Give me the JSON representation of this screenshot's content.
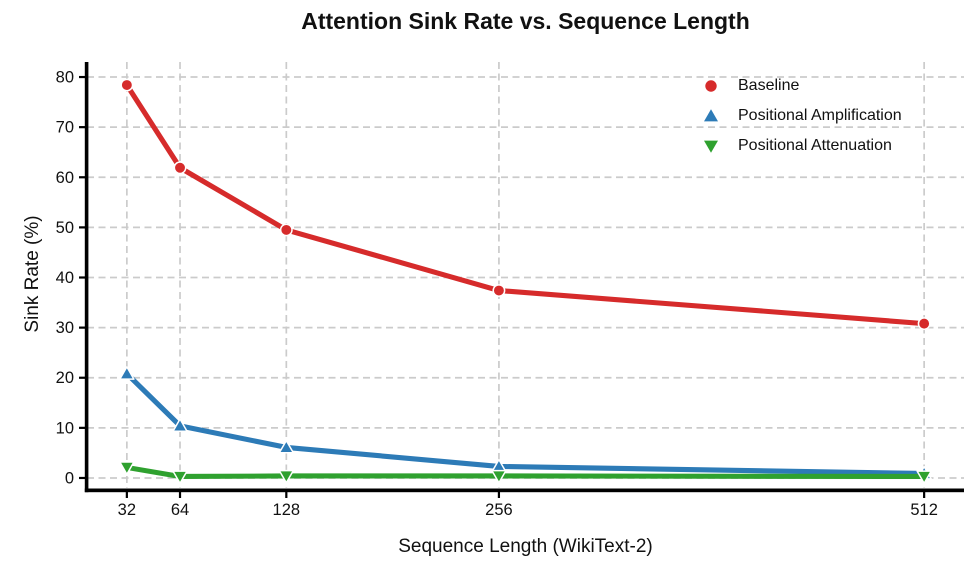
{
  "chart_data": {
    "type": "line",
    "title": "Attention Sink Rate vs. Sequence Length",
    "xlabel": "Sequence Length (WikiText-2)",
    "ylabel": "Sink Rate (%)",
    "x": [
      32,
      64,
      128,
      256,
      512
    ],
    "xticks": [
      "32",
      "64",
      "128",
      "256",
      "512"
    ],
    "yticks": [
      0,
      10,
      20,
      30,
      40,
      50,
      60,
      70,
      80
    ],
    "xlim": [
      8,
      536
    ],
    "ylim": [
      -2,
      83
    ],
    "grid": true,
    "grid_style": "dashed",
    "legend_position": "upper right",
    "series": [
      {
        "name": "Baseline",
        "color": "#d62b2b",
        "marker": "circle",
        "values": [
          78.4,
          61.9,
          49.5,
          37.4,
          30.8
        ]
      },
      {
        "name": "Positional Amplification",
        "color": "#2d7bb7",
        "marker": "triangle-up",
        "values": [
          20.8,
          10.4,
          6.1,
          2.3,
          0.9
        ]
      },
      {
        "name": "Positional Attenuation",
        "color": "#2fa12f",
        "marker": "triangle-down",
        "values": [
          2.1,
          0.3,
          0.4,
          0.4,
          0.3
        ]
      }
    ],
    "colors": {
      "background": "#ffffff",
      "gridline": "#cbcbcb",
      "spine": "#000000",
      "text": "#111111"
    }
  }
}
